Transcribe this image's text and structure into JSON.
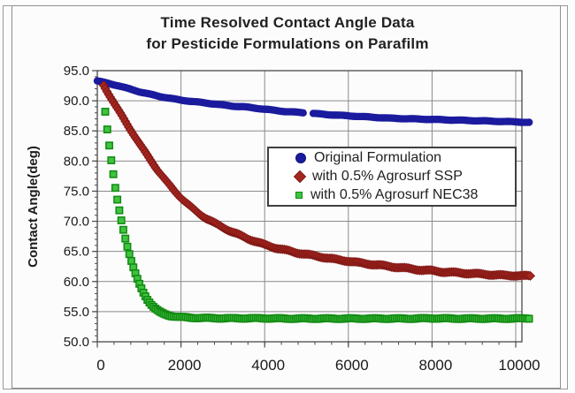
{
  "window": {
    "background": "#fcfcfc"
  },
  "chart_data": {
    "type": "scatter",
    "title": "Time Resolved Contact Angle Data",
    "subtitle": "for Pesticide Formulations on Parafilm",
    "xlabel": "",
    "ylabel": "Contact Angle(deg)",
    "xlim": [
      0,
      10150
    ],
    "ylim": [
      50,
      95
    ],
    "grid": true,
    "legend_position": "inside center-right",
    "colors": {
      "grid": "#8a8a8a",
      "axis": "#4a4a4a",
      "text": "#1a1a1a"
    },
    "x_ticks": {
      "values": [
        0,
        2000,
        4000,
        6000,
        8000,
        10000
      ],
      "labels": [
        "0",
        "2000",
        "4000",
        "6000",
        "8000",
        "10000"
      ],
      "minor_step": 400
    },
    "y_ticks": {
      "values": [
        50,
        55,
        60,
        65,
        70,
        75,
        80,
        85,
        90,
        95
      ],
      "labels": [
        "50.0",
        "55.0",
        "60.0",
        "65.0",
        "70.0",
        "75.0",
        "80.0",
        "85.0",
        "90.0",
        "95.0"
      ],
      "minor_step": 1
    },
    "series": [
      {
        "name": "Original Formulation",
        "marker": "circle",
        "color": "#1b1b9e",
        "edge": "#10107a",
        "gaps": [
          [
            4950,
            5150
          ]
        ],
        "x": [
          0,
          250,
          500,
          750,
          1000,
          1250,
          1500,
          1750,
          2000,
          2250,
          2500,
          2750,
          3000,
          3250,
          3500,
          3750,
          4000,
          4250,
          4500,
          4750,
          4950,
          5150,
          5500,
          6000,
          6500,
          7000,
          7500,
          8000,
          8500,
          9000,
          9500,
          10000,
          10350
        ],
        "y": [
          93.3,
          92.9,
          92.5,
          92.0,
          91.5,
          91.1,
          90.7,
          90.4,
          90.1,
          89.9,
          89.7,
          89.5,
          89.3,
          89.1,
          89.0,
          88.8,
          88.6,
          88.4,
          88.2,
          88.1,
          88.0,
          87.9,
          87.7,
          87.5,
          87.3,
          87.1,
          87.0,
          86.9,
          86.8,
          86.7,
          86.6,
          86.5,
          86.4
        ]
      },
      {
        "name": "with 0.5% Agrosurf SSP",
        "marker": "diamond",
        "color": "#a42620",
        "edge": "#7e1713",
        "gaps": [],
        "x": [
          150,
          250,
          350,
          450,
          550,
          650,
          750,
          850,
          950,
          1050,
          1150,
          1250,
          1350,
          1450,
          1550,
          1650,
          1750,
          1850,
          2000,
          2150,
          2300,
          2450,
          2600,
          2800,
          3000,
          3200,
          3400,
          3600,
          3800,
          4000,
          4250,
          4500,
          4750,
          5000,
          5250,
          5500,
          5750,
          6000,
          6250,
          6500,
          6750,
          7000,
          7250,
          7500,
          7750,
          8000,
          8250,
          8500,
          8750,
          9000,
          9250,
          9500,
          9750,
          10000,
          10350
        ],
        "y": [
          92.6,
          91.4,
          90.2,
          89.0,
          87.9,
          86.8,
          85.7,
          84.6,
          83.5,
          82.4,
          81.4,
          80.4,
          79.4,
          78.4,
          77.5,
          76.6,
          75.8,
          75.0,
          73.9,
          72.9,
          72.0,
          71.2,
          70.5,
          69.7,
          69.0,
          68.3,
          67.7,
          67.1,
          66.6,
          66.1,
          65.6,
          65.2,
          64.8,
          64.5,
          64.2,
          63.9,
          63.6,
          63.4,
          63.1,
          62.9,
          62.7,
          62.5,
          62.3,
          62.1,
          61.9,
          61.8,
          61.6,
          61.5,
          61.4,
          61.3,
          61.2,
          61.1,
          61.0,
          61.0,
          60.9
        ]
      },
      {
        "name": "with 0.5% Agrosurf NEC38",
        "marker": "square",
        "color": "#3ec43e",
        "edge": "#128a12",
        "gaps": [],
        "x": [
          190,
          240,
          290,
          335,
          385,
          430,
          480,
          530,
          580,
          630,
          680,
          730,
          780,
          830,
          880,
          930,
          980,
          1030,
          1100,
          1200,
          1300,
          1400,
          1500,
          1600,
          1700,
          1800,
          1900,
          2000,
          2200,
          2500,
          3000,
          3500,
          4000,
          4500,
          5000,
          5500,
          6000,
          6500,
          7000,
          7500,
          8000,
          8500,
          9000,
          9500,
          10000,
          10350
        ],
        "y": [
          88.2,
          85.1,
          82.3,
          80.0,
          77.6,
          75.5,
          73.5,
          71.7,
          70.0,
          68.4,
          66.9,
          65.5,
          64.2,
          63.0,
          61.9,
          60.9,
          60.0,
          59.2,
          58.2,
          57.0,
          56.1,
          55.4,
          54.9,
          54.6,
          54.4,
          54.25,
          54.15,
          54.1,
          54.0,
          53.95,
          53.9,
          53.9,
          53.9,
          53.85,
          53.85,
          53.85,
          53.85,
          53.85,
          53.85,
          53.85,
          53.9,
          53.85,
          53.85,
          53.85,
          53.85,
          53.9
        ]
      }
    ]
  }
}
